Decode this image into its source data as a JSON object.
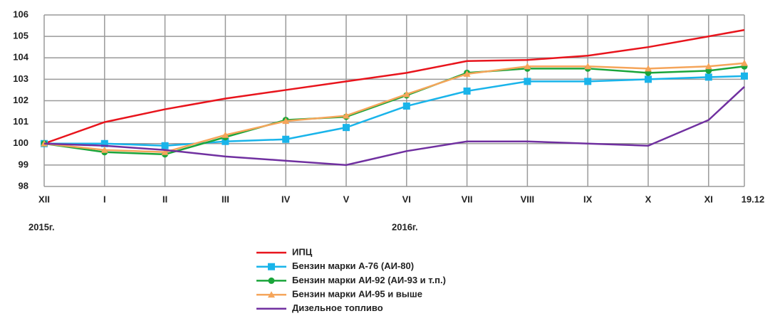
{
  "chart_data": {
    "type": "line",
    "categories": [
      "XII",
      "I",
      "II",
      "III",
      "IV",
      "V",
      "VI",
      "VII",
      "VIII",
      "IX",
      "X",
      "XI",
      "19.12"
    ],
    "year_labels": [
      "2015г.",
      "2016г."
    ],
    "ylim": [
      98,
      106
    ],
    "yticks": [
      98,
      99,
      100,
      101,
      102,
      103,
      104,
      105,
      106
    ],
    "grid": true,
    "legend": "bottom",
    "series": [
      {
        "name": "ИПЦ",
        "color": "#e8141c",
        "marker": "none",
        "values": [
          100,
          101.0,
          101.6,
          102.1,
          102.5,
          102.9,
          103.3,
          103.85,
          103.9,
          104.1,
          104.5,
          105.0,
          105.3
        ]
      },
      {
        "name": "Бензин марки А-76 (АИ-80)",
        "color": "#19b4ea",
        "marker": "square",
        "values": [
          100,
          100.0,
          99.9,
          100.1,
          100.2,
          100.75,
          101.75,
          102.45,
          102.9,
          102.9,
          103.0,
          103.1,
          103.15
        ]
      },
      {
        "name": "Бензин марки АИ-92 (АИ-93 и т.п.)",
        "color": "#1aa53a",
        "marker": "circle",
        "values": [
          100,
          99.6,
          99.5,
          100.3,
          101.1,
          101.25,
          102.25,
          103.3,
          103.5,
          103.5,
          103.3,
          103.4,
          103.6
        ]
      },
      {
        "name": "Бензин марки АИ-95 и выше",
        "color": "#f5a55a",
        "marker": "triangle",
        "values": [
          100,
          99.7,
          99.6,
          100.4,
          101.05,
          101.3,
          102.3,
          103.25,
          103.6,
          103.6,
          103.5,
          103.6,
          103.75
        ]
      },
      {
        "name": "Дизельное топливо",
        "color": "#7030a0",
        "marker": "none",
        "values": [
          100,
          99.9,
          99.7,
          99.4,
          99.2,
          99.0,
          99.65,
          100.1,
          100.1,
          100.0,
          99.9,
          101.1,
          102.65
        ]
      }
    ]
  }
}
